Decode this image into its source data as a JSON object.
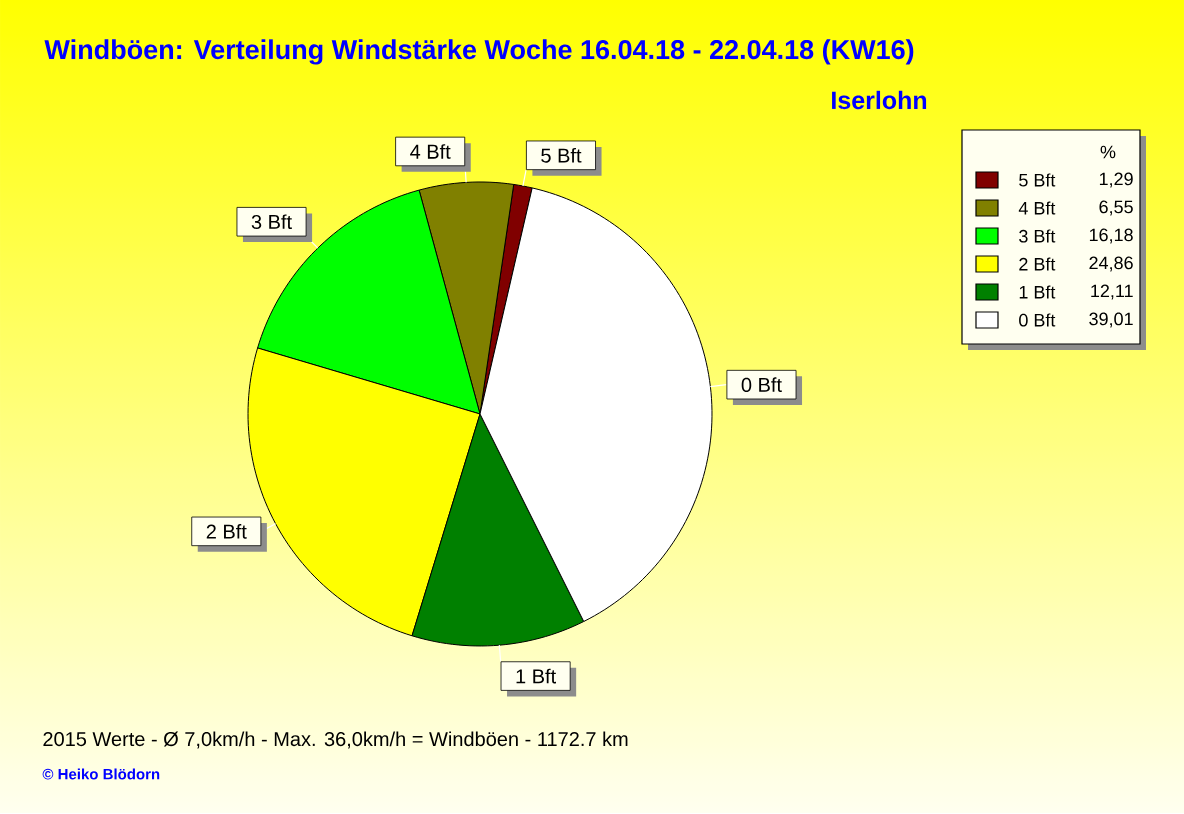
{
  "chart_data": {
    "type": "pie",
    "title": "Windböen: Verteilung Windstärke Woche 16.04.18 - 22.04.18 (KW16)",
    "subtitle": "Iserlohn",
    "legend_title": "%",
    "categories": [
      "5 Bft",
      "4 Bft",
      "3 Bft",
      "2 Bft",
      "1 Bft",
      "0 Bft"
    ],
    "values": [
      1.29,
      6.55,
      16.18,
      24.86,
      12.11,
      39.01
    ],
    "value_labels": [
      "1,29",
      "6,55",
      "16,18",
      "24,86",
      "12,11",
      "39,01"
    ],
    "colors": [
      "#800000",
      "#808000",
      "#00ff00",
      "#ffff00",
      "#008000",
      "#ffffff"
    ],
    "legend": "top right",
    "annotations": [
      "2015 Werte - Ø 7,0km/h - Max. 36,0km/h = Windböen - 1172.7 km",
      "© Heiko Blödorn"
    ]
  }
}
